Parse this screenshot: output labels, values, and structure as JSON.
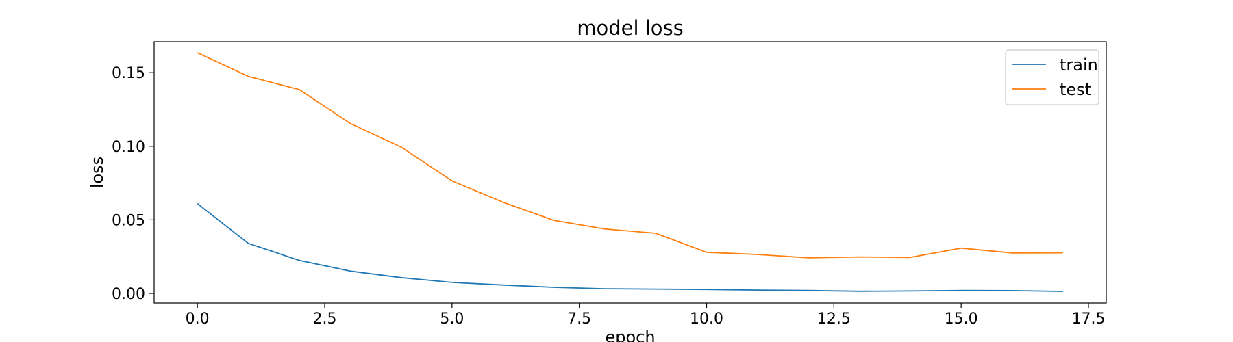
{
  "chart_data": {
    "type": "line",
    "title": "model loss",
    "xlabel": "epoch",
    "ylabel": "loss",
    "x": [
      0,
      1,
      2,
      3,
      4,
      5,
      6,
      7,
      8,
      9,
      10,
      11,
      12,
      13,
      14,
      15,
      16,
      17
    ],
    "xlim": [
      -0.85,
      17.85
    ],
    "ylim": [
      -0.0065,
      0.171
    ],
    "xticks": [
      0.0,
      2.5,
      5.0,
      7.5,
      10.0,
      12.5,
      15.0,
      17.5
    ],
    "xtick_labels": [
      "0.0",
      "2.5",
      "5.0",
      "7.5",
      "10.0",
      "12.5",
      "15.0",
      "17.5"
    ],
    "yticks": [
      0.0,
      0.05,
      0.1,
      0.15
    ],
    "ytick_labels": [
      "0.00",
      "0.05",
      "0.10",
      "0.15"
    ],
    "grid": false,
    "legend_position": "upper right",
    "series": [
      {
        "name": "train",
        "color": "#1f77b4",
        "values": [
          0.061,
          0.034,
          0.0225,
          0.0152,
          0.0108,
          0.0075,
          0.0057,
          0.0042,
          0.0032,
          0.003,
          0.0027,
          0.0023,
          0.002,
          0.0015,
          0.0017,
          0.002,
          0.0019,
          0.0014
        ]
      },
      {
        "name": "test",
        "color": "#ff7f0e",
        "values": [
          0.1635,
          0.1475,
          0.1385,
          0.1155,
          0.0995,
          0.0765,
          0.062,
          0.0497,
          0.0438,
          0.0409,
          0.028,
          0.0265,
          0.0242,
          0.0248,
          0.0245,
          0.0308,
          0.0275,
          0.0276
        ]
      }
    ]
  }
}
